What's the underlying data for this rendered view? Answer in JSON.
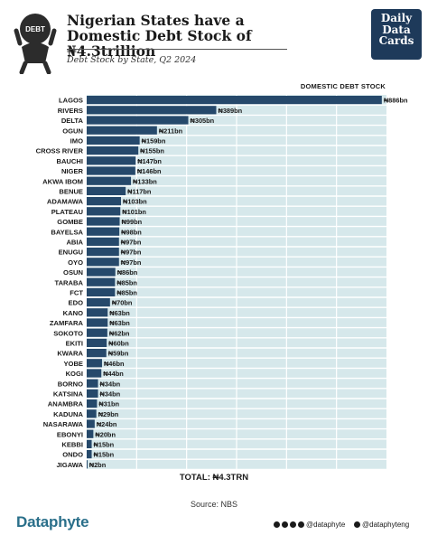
{
  "header": {
    "title": "Nigerian States have a Domestic Debt Stock of ₦4.3trillion",
    "subtitle": "Debt Stock by State, Q2 2024",
    "logo_badge": "DEBT",
    "brand": "Daily Data Cards"
  },
  "chart_data": {
    "type": "bar",
    "orientation": "horizontal",
    "legend": "DOMESTIC DEBT STOCK",
    "categories": [
      "LAGOS",
      "RIVERS",
      "DELTA",
      "OGUN",
      "IMO",
      "CROSS RIVER",
      "BAUCHI",
      "NIGER",
      "AKWA IBOM",
      "BENUE",
      "ADAMAWA",
      "PLATEAU",
      "GOMBE",
      "BAYELSA",
      "ABIA",
      "ENUGU",
      "OYO",
      "OSUN",
      "TARABA",
      "FCT",
      "EDO",
      "KANO",
      "ZAMFARA",
      "SOKOTO",
      "EKITI",
      "KWARA",
      "YOBE",
      "KOGI",
      "BORNO",
      "KATSINA",
      "ANAMBRA",
      "KADUNA",
      "NASARAWA",
      "EBONYI",
      "KEBBI",
      "ONDO",
      "JIGAWA"
    ],
    "values": [
      886,
      389,
      305,
      211,
      159,
      155,
      147,
      146,
      133,
      117,
      103,
      101,
      99,
      98,
      97,
      97,
      97,
      86,
      85,
      85,
      70,
      63,
      63,
      62,
      60,
      59,
      46,
      44,
      34,
      34,
      31,
      29,
      24,
      20,
      15,
      15,
      2
    ],
    "value_labels": [
      "₦886bn",
      "₦389bn",
      "₦305bn",
      "₦211bn",
      "₦159bn",
      "₦155bn",
      "₦147bn",
      "₦146bn",
      "₦133bn",
      "₦117bn",
      "₦103bn",
      "₦101bn",
      "₦99bn",
      "₦98bn",
      "₦97bn",
      "₦97bn",
      "₦97bn",
      "₦86bn",
      "₦85bn",
      "₦85bn",
      "₦70bn",
      "₦63bn",
      "₦63bn",
      "₦62bn",
      "₦60bn",
      "₦59bn",
      "₦46bn",
      "₦44bn",
      "₦34bn",
      "₦34bn",
      "₦31bn",
      "₦29bn",
      "₦24bn",
      "₦20bn",
      "₦15bn",
      "₦15bn",
      "₦2bn"
    ],
    "unit": "₦bn",
    "xlim": [
      0,
      900
    ],
    "grid": true,
    "colors": {
      "bar": "#26496b",
      "track": "#d6e8eb",
      "grid": "#ffffff"
    }
  },
  "total": "TOTAL: ₦4.3TRN",
  "source": "Source: NBS",
  "footer": {
    "brand": "Dataphyte",
    "social_1": "@dataphyte",
    "social_2": "@dataphyteng"
  }
}
